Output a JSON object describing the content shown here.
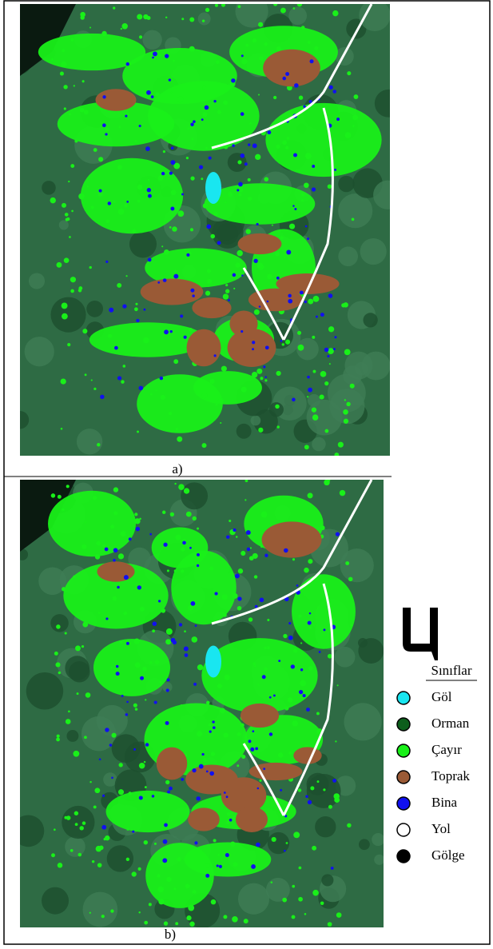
{
  "figure": {
    "captions": [
      "a)",
      "b)"
    ],
    "legend": {
      "title": "Sınıflar",
      "items": [
        {
          "label": "Göl",
          "color": "#19e6f0"
        },
        {
          "label": "Orman",
          "color": "#0d5e1c"
        },
        {
          "label": "Çayır",
          "color": "#19f019"
        },
        {
          "label": "Toprak",
          "color": "#9a5a36"
        },
        {
          "label": "Bina",
          "color": "#1010f0"
        },
        {
          "label": "Yol",
          "color": "#ffffff"
        },
        {
          "label": "Gölge",
          "color": "#000000"
        }
      ]
    }
  }
}
